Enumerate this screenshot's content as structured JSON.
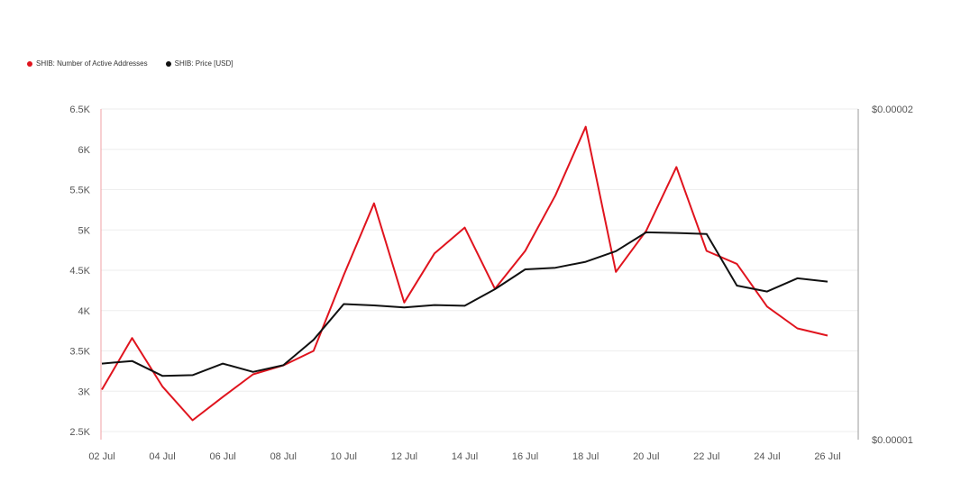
{
  "chart_data": {
    "type": "line",
    "categories": [
      "02 Jul",
      "03 Jul",
      "04 Jul",
      "05 Jul",
      "06 Jul",
      "07 Jul",
      "08 Jul",
      "09 Jul",
      "10 Jul",
      "11 Jul",
      "12 Jul",
      "13 Jul",
      "14 Jul",
      "15 Jul",
      "16 Jul",
      "17 Jul",
      "18 Jul",
      "19 Jul",
      "20 Jul",
      "21 Jul",
      "22 Jul",
      "23 Jul",
      "24 Jul",
      "25 Jul",
      "26 Jul"
    ],
    "x_tick_labels": [
      "02 Jul",
      "04 Jul",
      "06 Jul",
      "08 Jul",
      "10 Jul",
      "12 Jul",
      "14 Jul",
      "16 Jul",
      "18 Jul",
      "20 Jul",
      "22 Jul",
      "24 Jul",
      "26 Jul"
    ],
    "series": [
      {
        "name": "SHIB: Number of Active Addresses",
        "axis": "left",
        "color": "#e0141e",
        "values": [
          3020,
          3660,
          3060,
          2640,
          2930,
          3210,
          3320,
          3500,
          4440,
          5330,
          4100,
          4710,
          5030,
          4270,
          4740,
          5430,
          6280,
          4480,
          4990,
          5780,
          4740,
          4580,
          4050,
          3780,
          3690
        ]
      },
      {
        "name": "SHIB: Price [USD]",
        "axis": "right",
        "color": "#111111",
        "values": [
          1.23e-05,
          1.238e-05,
          1.193e-05,
          1.195e-05,
          1.23e-05,
          1.205e-05,
          1.225e-05,
          1.302e-05,
          1.41e-05,
          1.406e-05,
          1.4e-05,
          1.407e-05,
          1.405e-05,
          1.455e-05,
          1.515e-05,
          1.52e-05,
          1.538e-05,
          1.57e-05,
          1.627e-05,
          1.625e-05,
          1.622e-05,
          1.466e-05,
          1.448e-05,
          1.488e-05,
          1.478e-05
        ]
      }
    ],
    "left_axis": {
      "ylim": [
        2400,
        6500
      ],
      "tick_values": [
        2500,
        3000,
        3500,
        4000,
        4500,
        5000,
        5500,
        6000,
        6500
      ],
      "tick_labels": [
        "2.5K",
        "3K",
        "3.5K",
        "4K",
        "4.5K",
        "5K",
        "5.5K",
        "6K",
        "6.5K"
      ]
    },
    "right_axis": {
      "ylim": [
        1e-05,
        2e-05
      ],
      "tick_values": [
        1e-05,
        2e-05
      ],
      "tick_labels": [
        "$0.00001",
        "$0.00002"
      ]
    },
    "grid": true,
    "legend_position": "top-left",
    "title": "",
    "xlabel": "",
    "ylabel": ""
  }
}
